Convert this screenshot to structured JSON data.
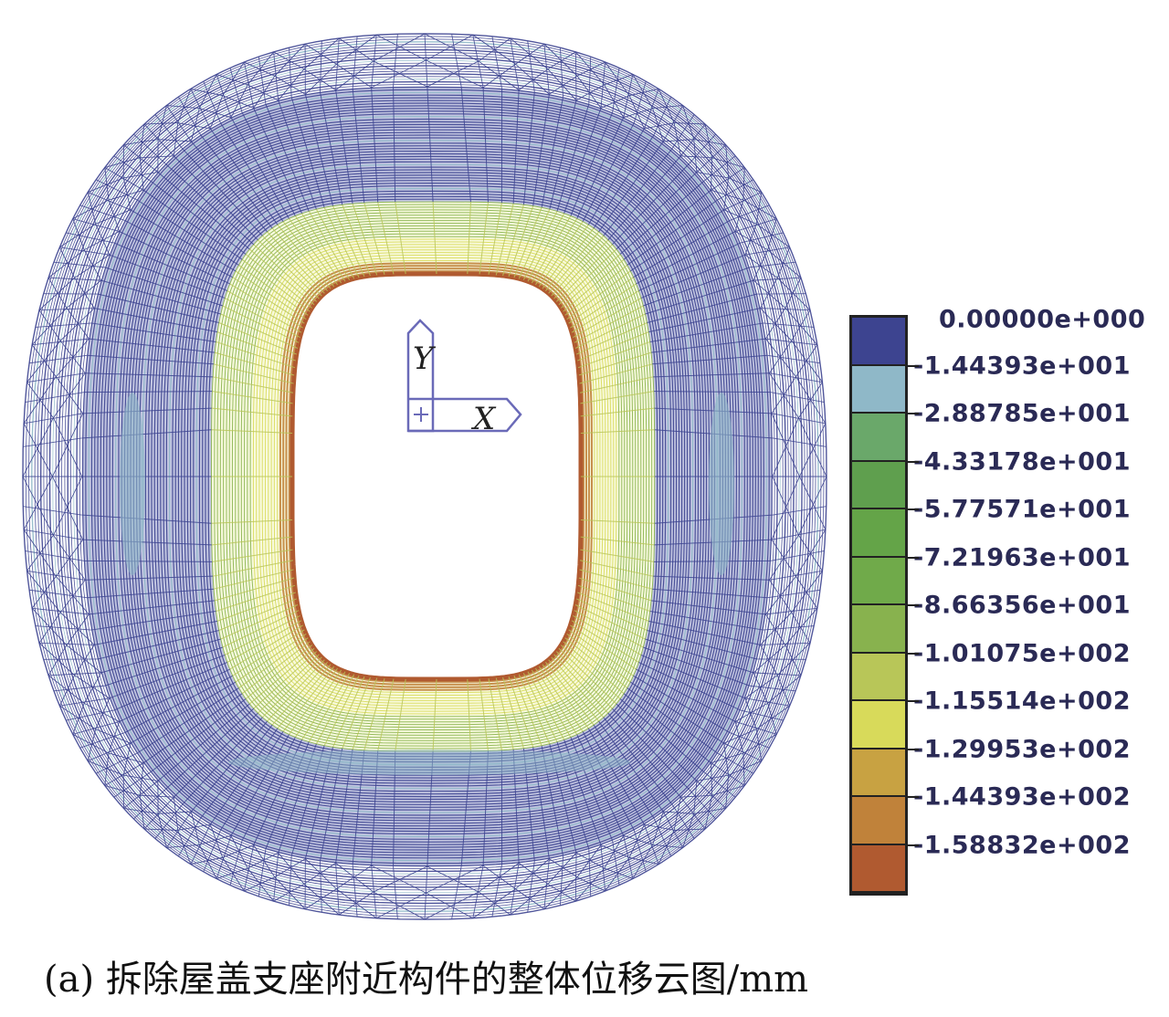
{
  "figure": {
    "caption": "(a) 拆除屋盖支座附近构件的整体位移云图/mm",
    "axis_triad": {
      "y_label": "Y",
      "x_label": "X"
    }
  },
  "chart_data": {
    "type": "heatmap",
    "unit": "mm",
    "legend_placement": "right",
    "legend_levels": [
      "0.00000e+000",
      "-1.44393e+001",
      "-2.88785e+001",
      "-4.33178e+001",
      "-5.77571e+001",
      "-7.21963e+001",
      "-8.66356e+001",
      "-1.01075e+002",
      "-1.15514e+002",
      "-1.29953e+002",
      "-1.44393e+002",
      "-1.58832e+002"
    ],
    "legend_values": [
      0,
      -14.4393,
      -28.8785,
      -43.3178,
      -57.7571,
      -72.1963,
      -86.6356,
      -101.075,
      -115.514,
      -129.953,
      -144.393,
      -158.832
    ],
    "band_colors": [
      "#3d4490",
      "#8fb8c8",
      "#6aa86a",
      "#5f9f4e",
      "#64a448",
      "#70aa4a",
      "#88b24e",
      "#b8c658",
      "#d8da5a",
      "#c8a242",
      "#c0823a",
      "#b05a30"
    ]
  }
}
